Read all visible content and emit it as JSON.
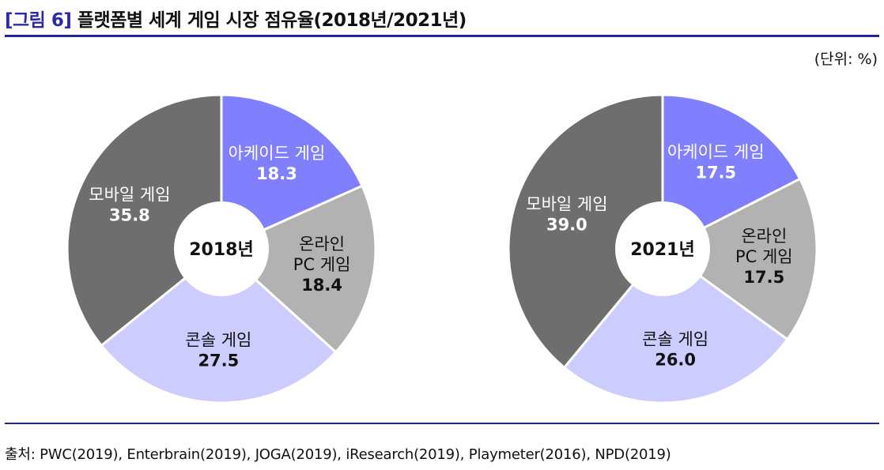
{
  "figure": {
    "label": "[그림 6]",
    "title": "플랫폼별 세계 게임 시장 점유율(2018년/2021년)",
    "unit": "(단위: %)",
    "source": "출처: PWC(2019), Enterbrain(2019), JOGA(2019), iResearch(2019), Playmeter(2016), NPD(2019)"
  },
  "colors": {
    "arcade": "#8080ff",
    "online_pc": "#b2b2b2",
    "console": "#ccccff",
    "mobile": "#6e6e6e",
    "center": "#ffffff",
    "rule": "#2424a0"
  },
  "chart_data": [
    {
      "type": "pie",
      "center_label": "2018년",
      "slices": [
        {
          "key": "arcade",
          "label": [
            "아케이드 게임"
          ],
          "value": 18.3
        },
        {
          "key": "online_pc",
          "label": [
            "온라인",
            "PC 게임"
          ],
          "value": 18.4
        },
        {
          "key": "console",
          "label": [
            "콘솔 게임"
          ],
          "value": 27.5
        },
        {
          "key": "mobile",
          "label": [
            "모바일 게임"
          ],
          "value": 35.8
        }
      ]
    },
    {
      "type": "pie",
      "center_label": "2021년",
      "slices": [
        {
          "key": "arcade",
          "label": [
            "아케이드 게임"
          ],
          "value": 17.5
        },
        {
          "key": "online_pc",
          "label": [
            "온라인",
            "PC 게임"
          ],
          "value": 17.5
        },
        {
          "key": "console",
          "label": [
            "콘솔 게임"
          ],
          "value": 26.0
        },
        {
          "key": "mobile",
          "label": [
            "모바일 게임"
          ],
          "value": 39.0
        }
      ]
    }
  ]
}
